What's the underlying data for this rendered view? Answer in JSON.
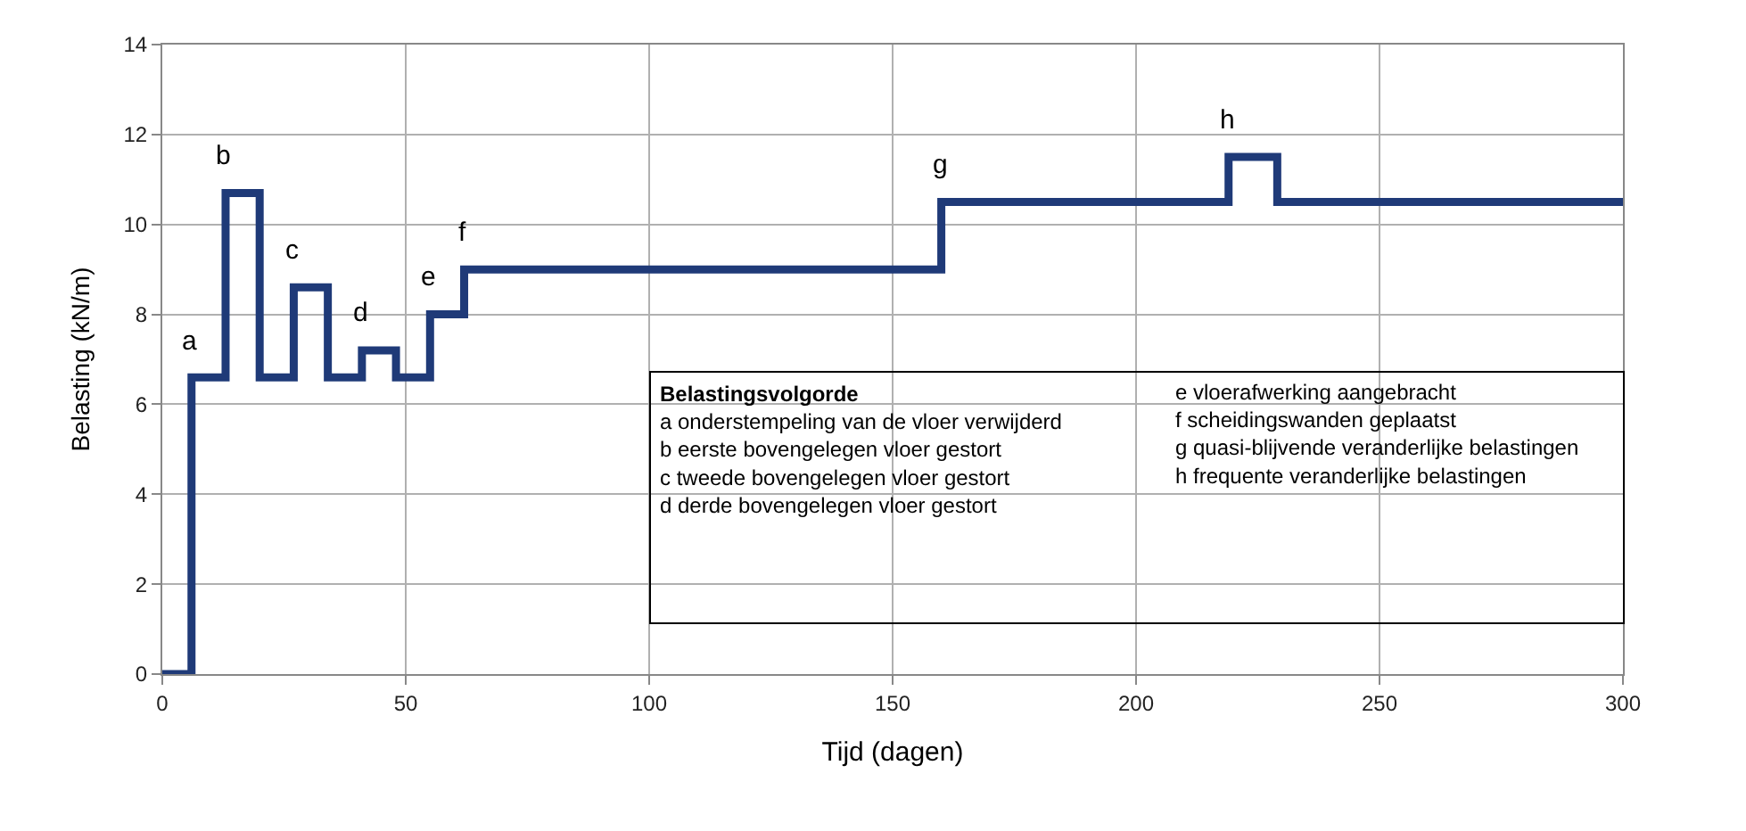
{
  "chart_data": {
    "type": "step",
    "xlabel": "Tijd (dagen)",
    "ylabel": "Belasting (kN/m)",
    "x": [
      0,
      6,
      13,
      20,
      27,
      34,
      41,
      48,
      55,
      62,
      160,
      219,
      229,
      300
    ],
    "series": [
      {
        "color": "#1f3a78",
        "values": [
          0,
          6.6,
          10.7,
          6.6,
          8.6,
          6.6,
          7.2,
          6.6,
          8.0,
          9.0,
          10.5,
          11.5,
          10.5,
          10.5
        ]
      }
    ],
    "xlim": [
      0,
      300
    ],
    "xticks": [
      0,
      50,
      100,
      150,
      200,
      250,
      300
    ],
    "ylim": [
      0,
      14
    ],
    "yticks": [
      0,
      2,
      4,
      6,
      8,
      10,
      12,
      14
    ],
    "grid": true,
    "marker": "none",
    "line_style": "solid",
    "annotations": [
      {
        "text": "a",
        "x": 6,
        "y": 6.6
      },
      {
        "text": "b",
        "x": 13,
        "y": 10.7
      },
      {
        "text": "c",
        "x": 27,
        "y": 8.6
      },
      {
        "text": "d",
        "x": 41,
        "y": 7.2
      },
      {
        "text": "e",
        "x": 55,
        "y": 8.0
      },
      {
        "text": "f",
        "x": 62,
        "y": 9.0
      },
      {
        "text": "g",
        "x": 160,
        "y": 10.5
      },
      {
        "text": "h",
        "x": 219,
        "y": 11.5
      },
      "Belastingsvolgorde",
      "a onderstempeling van de vloer verwijderd",
      "b eerste bovengelegen vloer gestort",
      "c tweede bovengelegen vloer gestort",
      "d derde bovengelegen vloer gestort",
      "e vloerafwerking aangebracht",
      "f scheidingswanden geplaatst",
      "g quasi-blijvende veranderlijke belastingen",
      "h frequente veranderlijke belastingen"
    ]
  }
}
